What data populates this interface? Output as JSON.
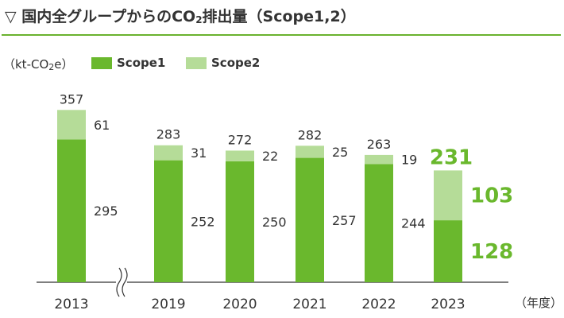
{
  "title": {
    "prefix": "▽ 国内全グループからのCO",
    "sub": "2",
    "suffix": "排出量（Scope1,2）"
  },
  "unit_label": {
    "prefix": "（kt-CO",
    "sub": "2",
    "suffix": "e）"
  },
  "year_unit": "（年度）",
  "colors": {
    "scope1": "#6ab82d",
    "scope2": "#b5dc98",
    "highlight_text": "#6ab82d",
    "text": "#333333",
    "rule": "#6ab22e"
  },
  "chart_data": {
    "type": "bar",
    "stacked": true,
    "categories": [
      "2013",
      "2019",
      "2020",
      "2021",
      "2022",
      "2023"
    ],
    "series": [
      {
        "name": "Scope1",
        "values": [
          295,
          252,
          250,
          257,
          244,
          128
        ]
      },
      {
        "name": "Scope2",
        "values": [
          61,
          31,
          22,
          25,
          19,
          103
        ]
      }
    ],
    "totals": [
      357,
      283,
      272,
      282,
      263,
      231
    ],
    "highlight_category": "2023",
    "axis_break_after": "2013",
    "ylim": [
      0,
      370
    ],
    "legend_position": "top-left",
    "grid": false
  }
}
